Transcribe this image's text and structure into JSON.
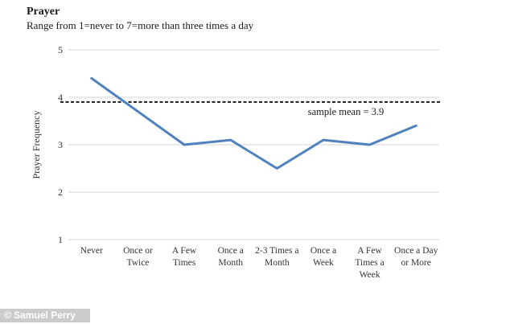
{
  "header": {
    "title": "Prayer",
    "subtitle": "Range from 1=never to 7=more than three times a day"
  },
  "watermark": "© Samuel Perry",
  "colors": {
    "line": "#4f81bd",
    "gridline": "#d3d3d3",
    "mean_line": "#1a1a1a",
    "text": "#333333",
    "watermark_bg": "#cbcbcb",
    "watermark_text": "#ffffff",
    "background": "#ffffff"
  },
  "chart_data": {
    "type": "line",
    "title": "Prayer",
    "subtitle": "Range from 1=never to 7=more than three times a day",
    "categories": [
      "Never",
      "Once or Twice",
      "A Few Times",
      "Once a Month",
      "2-3 Times a Month",
      "Once a Week",
      "A Few Times a Week",
      "Once a Day or More"
    ],
    "category_display": [
      "Never",
      "Once or\nTwice",
      "A Few\nTimes",
      "Once a\nMonth",
      "2-3 Times a\nMonth",
      "Once a\nWeek",
      "A Few\nTimes a\nWeek",
      "Once a Day\nor More"
    ],
    "values": [
      4.4,
      3.7,
      3.0,
      3.1,
      2.5,
      3.1,
      3.0,
      3.4
    ],
    "xlabel": "",
    "ylabel": "Prayer Frequency",
    "ylim": [
      1,
      5
    ],
    "yticks": [
      1,
      2,
      3,
      4,
      5
    ],
    "grid": true,
    "legend": false,
    "annotations": [
      {
        "text": "sample mean = 3.9",
        "value": 3.9,
        "line_style": "dashed"
      }
    ]
  }
}
